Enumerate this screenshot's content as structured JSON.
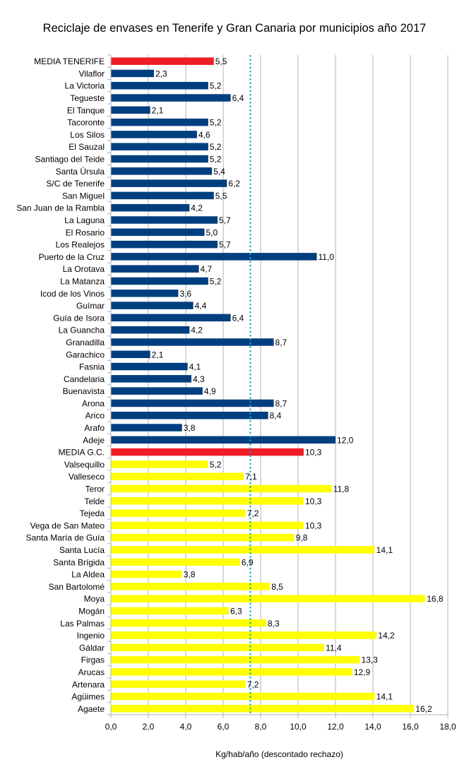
{
  "chart_data": {
    "type": "bar",
    "orientation": "horizontal",
    "title": "Reciclaje de envases  en Tenerife y  Gran Canaria por municipios año 2017",
    "xlabel": "Kg/hab/año (descontado rechazo)",
    "ylabel": "",
    "xlim": [
      0,
      18
    ],
    "xticks": [
      "0,0",
      "2,0",
      "4,0",
      "6,0",
      "8,0",
      "10,0",
      "12,0",
      "14,0",
      "16,0",
      "18,0"
    ],
    "grid": true,
    "reference_line": {
      "value": 7.45,
      "color": "#17a2c8",
      "style": "dotted"
    },
    "categories": [
      "MEDIA TENERIFE",
      "Vilaflor",
      "La Victoria",
      "Tegueste",
      "El Tanque",
      "Tacoronte",
      "Los Silos",
      "El Sauzal",
      "Santiago del Teide",
      "Santa Úrsula",
      "S/C de Tenerife",
      "San Miguel",
      "San Juan de la Rambla",
      "La Laguna",
      "El Rosario",
      "Los Realejos",
      "Puerto de la Cruz",
      "La Orotava",
      "La Matanza",
      "Icod de los Vinos ",
      "Guímar",
      "Guía de Isora",
      "La Guancha",
      "Granadilla",
      "Garachico",
      "Fasnia",
      "Candelaria",
      "Buenavista",
      "Arona",
      "Arico",
      "Arafo",
      "Adeje",
      "MEDIA G.C.",
      "Valsequillo",
      "Valleseco",
      "Teror",
      "Telde",
      "Tejeda",
      "Vega de San Mateo",
      "Santa María de Guía",
      "Santa Lucía",
      "Santa Brígida",
      "La Aldea",
      "San Bartolomé",
      "Moya",
      "Mogán",
      "Las Palmas",
      "Ingenio",
      "Gáldar",
      "Firgas",
      "Arucas",
      "Artenara",
      "Agüimes",
      "Agaete"
    ],
    "values": [
      5.5,
      2.3,
      5.2,
      6.4,
      2.1,
      5.2,
      4.6,
      5.2,
      5.2,
      5.4,
      6.2,
      5.5,
      4.2,
      5.7,
      5.0,
      5.7,
      11.0,
      4.7,
      5.2,
      3.6,
      4.4,
      6.4,
      4.2,
      8.7,
      2.1,
      4.1,
      4.3,
      4.9,
      8.7,
      8.4,
      3.8,
      12.0,
      10.3,
      5.2,
      7.1,
      11.8,
      10.3,
      7.2,
      10.3,
      9.8,
      14.1,
      6.9,
      3.8,
      8.5,
      16.8,
      6.3,
      8.3,
      14.2,
      11.4,
      13.3,
      12.9,
      7.2,
      14.1,
      16.2
    ],
    "data_labels": [
      "5,5",
      "2,3",
      "5,2",
      "6,4",
      "2,1",
      "5,2",
      "4,6",
      "5,2",
      "5,2",
      "5,4",
      "6,2",
      "5,5",
      "4,2",
      "5,7",
      "5,0",
      "5,7",
      "11,0",
      "4,7",
      "5,2",
      "3,6",
      "4,4",
      "6,4",
      "4,2",
      "8,7",
      "2,1",
      "4,1",
      "4,3",
      "4,9",
      "8,7",
      "8,4",
      "3,8",
      "12,0",
      "10,3",
      "5,2",
      "7,1",
      "11,8",
      "10,3",
      "7,2",
      "10,3",
      "9,8",
      "14,1",
      "6,9",
      "3,8",
      "8,5",
      "16,8",
      "6,3",
      "8,3",
      "14,2",
      "11,4",
      "13,3",
      "12,9",
      "7,2",
      "14,1",
      "16,2"
    ],
    "groups": [
      "average",
      "tenerife",
      "tenerife",
      "tenerife",
      "tenerife",
      "tenerife",
      "tenerife",
      "tenerife",
      "tenerife",
      "tenerife",
      "tenerife",
      "tenerife",
      "tenerife",
      "tenerife",
      "tenerife",
      "tenerife",
      "tenerife",
      "tenerife",
      "tenerife",
      "tenerife",
      "tenerife",
      "tenerife",
      "tenerife",
      "tenerife",
      "tenerife",
      "tenerife",
      "tenerife",
      "tenerife",
      "tenerife",
      "tenerife",
      "tenerife",
      "tenerife",
      "average",
      "grancanaria",
      "grancanaria",
      "grancanaria",
      "grancanaria",
      "grancanaria",
      "grancanaria",
      "grancanaria",
      "grancanaria",
      "grancanaria",
      "grancanaria",
      "grancanaria",
      "grancanaria",
      "grancanaria",
      "grancanaria",
      "grancanaria",
      "grancanaria",
      "grancanaria",
      "grancanaria",
      "grancanaria",
      "grancanaria",
      "grancanaria"
    ],
    "colors": {
      "average": "#ee1c25",
      "tenerife": "#003f7f",
      "grancanaria": "#ffff00",
      "grid": "#b3b3b3",
      "axis": "#b3b3b3"
    }
  }
}
